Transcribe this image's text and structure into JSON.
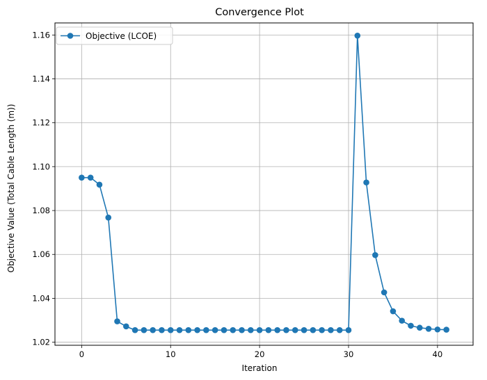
{
  "chart_data": {
    "type": "line",
    "title": "Convergence Plot",
    "xlabel": "Iteration",
    "ylabel": "Objective Value (Total Cable Length (m))",
    "xlim": [
      -3,
      44
    ],
    "ylim": [
      1.0186,
      1.1655
    ],
    "xticks": [
      0,
      10,
      20,
      30,
      40
    ],
    "xtick_labels": [
      "0",
      "10",
      "20",
      "30",
      "40"
    ],
    "yticks": [
      1.02,
      1.04,
      1.06,
      1.08,
      1.1,
      1.12,
      1.14,
      1.16
    ],
    "ytick_labels": [
      "1.02",
      "1.04",
      "1.06",
      "1.08",
      "1.10",
      "1.12",
      "1.14",
      "1.16"
    ],
    "grid": true,
    "legend_position": "top-left",
    "color": "#1f77b4",
    "series": [
      {
        "name": "Objective (LCOE)",
        "x": [
          0,
          1,
          2,
          3,
          4,
          5,
          6,
          7,
          8,
          9,
          10,
          11,
          12,
          13,
          14,
          15,
          16,
          17,
          18,
          19,
          20,
          21,
          22,
          23,
          24,
          25,
          26,
          27,
          28,
          29,
          30,
          31,
          32,
          33,
          34,
          35,
          36,
          37,
          38,
          39,
          40,
          41
        ],
        "y": [
          1.095,
          1.095,
          1.0918,
          1.0768,
          1.0295,
          1.0272,
          1.0255,
          1.0255,
          1.0255,
          1.0255,
          1.0255,
          1.0255,
          1.0255,
          1.0255,
          1.0255,
          1.0255,
          1.0255,
          1.0255,
          1.0255,
          1.0255,
          1.0255,
          1.0255,
          1.0255,
          1.0255,
          1.0255,
          1.0255,
          1.0255,
          1.0255,
          1.0255,
          1.0255,
          1.0255,
          1.1597,
          1.0928,
          1.0597,
          1.0427,
          1.0341,
          1.0298,
          1.0275,
          1.0266,
          1.0261,
          1.0258,
          1.0257
        ]
      }
    ]
  }
}
